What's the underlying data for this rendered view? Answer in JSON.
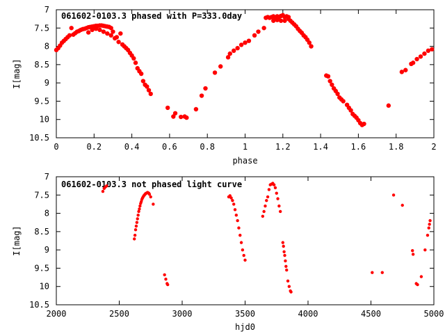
{
  "chart_data": [
    {
      "type": "scatter",
      "title": "061602-0103.3 phased with P=333.0day",
      "xlabel": "phase",
      "ylabel": "I[mag]",
      "xlim": [
        0,
        2
      ],
      "ylim": [
        10.5,
        7
      ],
      "y_inverted": true,
      "xticks": [
        0,
        0.2,
        0.4,
        0.6,
        0.8,
        1,
        1.2,
        1.4,
        1.6,
        1.8,
        2
      ],
      "xtick_labels": [
        "0",
        "0.2",
        "0.4",
        "0.6",
        "0.8",
        "1",
        "1.2",
        "1.4",
        "1.6",
        "1.8",
        "2"
      ],
      "yticks": [
        7,
        7.5,
        8,
        8.5,
        9,
        9.5,
        10,
        10.5
      ],
      "ytick_labels": [
        "7",
        "7.5",
        "8",
        "8.5",
        "9",
        "9.5",
        "10",
        "10.5"
      ],
      "grid": false,
      "marker_color": "#ff0000",
      "series": [
        {
          "values": [
            [
              0.0,
              8.1
            ],
            [
              0.01,
              8.05
            ],
            [
              0.02,
              7.98
            ],
            [
              0.03,
              7.9
            ],
            [
              0.04,
              7.85
            ],
            [
              0.05,
              7.8
            ],
            [
              0.06,
              7.75
            ],
            [
              0.07,
              7.7
            ],
            [
              0.08,
              7.5
            ],
            [
              0.09,
              7.68
            ],
            [
              0.1,
              7.64
            ],
            [
              0.11,
              7.6
            ],
            [
              0.12,
              7.58
            ],
            [
              0.13,
              7.55
            ],
            [
              0.14,
              7.53
            ],
            [
              0.15,
              7.52
            ],
            [
              0.16,
              7.5
            ],
            [
              0.17,
              7.48
            ],
            [
              0.18,
              7.47
            ],
            [
              0.19,
              7.46
            ],
            [
              0.2,
              7.45
            ],
            [
              0.21,
              7.44
            ],
            [
              0.22,
              7.44
            ],
            [
              0.23,
              7.43
            ],
            [
              0.24,
              7.43
            ],
            [
              0.25,
              7.44
            ],
            [
              0.26,
              7.45
            ],
            [
              0.27,
              7.46
            ],
            [
              0.28,
              7.47
            ],
            [
              0.29,
              7.5
            ],
            [
              0.17,
              7.62
            ],
            [
              0.19,
              7.55
            ],
            [
              0.21,
              7.52
            ],
            [
              0.23,
              7.55
            ],
            [
              0.25,
              7.6
            ],
            [
              0.27,
              7.65
            ],
            [
              0.29,
              7.7
            ],
            [
              0.31,
              7.78
            ],
            [
              0.33,
              7.88
            ],
            [
              0.35,
              7.95
            ],
            [
              0.36,
              8.0
            ],
            [
              0.37,
              8.05
            ],
            [
              0.38,
              8.1
            ],
            [
              0.39,
              8.18
            ],
            [
              0.4,
              8.25
            ],
            [
              0.41,
              8.33
            ],
            [
              0.42,
              8.45
            ],
            [
              0.43,
              8.6
            ],
            [
              0.44,
              8.68
            ],
            [
              0.45,
              8.75
            ],
            [
              0.46,
              8.95
            ],
            [
              0.47,
              9.05
            ],
            [
              0.48,
              9.1
            ],
            [
              0.49,
              9.2
            ],
            [
              0.5,
              9.3
            ],
            [
              0.34,
              7.65
            ],
            [
              0.3,
              7.6
            ],
            [
              0.32,
              7.75
            ],
            [
              0.59,
              9.68
            ],
            [
              0.62,
              9.92
            ],
            [
              0.63,
              9.83
            ],
            [
              0.66,
              9.93
            ],
            [
              0.68,
              9.92
            ],
            [
              0.69,
              9.95
            ],
            [
              0.74,
              9.72
            ],
            [
              0.77,
              9.35
            ],
            [
              0.79,
              9.15
            ],
            [
              0.84,
              8.72
            ],
            [
              0.87,
              8.55
            ],
            [
              0.91,
              8.3
            ],
            [
              0.92,
              8.2
            ],
            [
              0.94,
              8.12
            ],
            [
              0.96,
              8.05
            ],
            [
              0.98,
              7.96
            ],
            [
              1.0,
              7.9
            ],
            [
              1.02,
              7.85
            ],
            [
              1.05,
              7.7
            ],
            [
              1.07,
              7.6
            ],
            [
              1.1,
              7.5
            ],
            [
              1.11,
              7.22
            ],
            [
              1.12,
              7.2
            ],
            [
              1.13,
              7.22
            ],
            [
              1.14,
              7.2
            ],
            [
              1.15,
              7.18
            ],
            [
              1.16,
              7.22
            ],
            [
              1.17,
              7.18
            ],
            [
              1.18,
              7.2
            ],
            [
              1.19,
              7.17
            ],
            [
              1.2,
              7.15
            ],
            [
              1.21,
              7.2
            ],
            [
              1.22,
              7.18
            ],
            [
              1.23,
              7.2
            ],
            [
              1.15,
              7.3
            ],
            [
              1.17,
              7.28
            ],
            [
              1.19,
              7.3
            ],
            [
              1.21,
              7.3
            ],
            [
              1.23,
              7.25
            ],
            [
              1.24,
              7.3
            ],
            [
              1.25,
              7.35
            ],
            [
              1.26,
              7.4
            ],
            [
              1.27,
              7.45
            ],
            [
              1.28,
              7.52
            ],
            [
              1.29,
              7.58
            ],
            [
              1.3,
              7.63
            ],
            [
              1.31,
              7.7
            ],
            [
              1.32,
              7.75
            ],
            [
              1.33,
              7.82
            ],
            [
              1.34,
              7.9
            ],
            [
              1.35,
              8.0
            ],
            [
              1.43,
              8.8
            ],
            [
              1.44,
              8.82
            ],
            [
              1.45,
              8.95
            ],
            [
              1.46,
              9.05
            ],
            [
              1.47,
              9.15
            ],
            [
              1.48,
              9.22
            ],
            [
              1.49,
              9.3
            ],
            [
              1.5,
              9.4
            ],
            [
              1.51,
              9.45
            ],
            [
              1.52,
              9.5
            ],
            [
              1.54,
              9.6
            ],
            [
              1.55,
              9.68
            ],
            [
              1.56,
              9.75
            ],
            [
              1.57,
              9.85
            ],
            [
              1.58,
              9.9
            ],
            [
              1.59,
              9.95
            ],
            [
              1.6,
              10.02
            ],
            [
              1.61,
              10.1
            ],
            [
              1.62,
              10.15
            ],
            [
              1.63,
              10.12
            ],
            [
              1.76,
              9.62
            ],
            [
              1.83,
              8.7
            ],
            [
              1.85,
              8.65
            ],
            [
              1.88,
              8.48
            ],
            [
              1.89,
              8.45
            ],
            [
              1.91,
              8.35
            ],
            [
              1.93,
              8.28
            ],
            [
              1.95,
              8.2
            ],
            [
              1.97,
              8.12
            ],
            [
              1.99,
              8.08
            ]
          ]
        }
      ]
    },
    {
      "type": "scatter",
      "title": "061602-0103.3 not phased light curve",
      "xlabel": "hjd0",
      "ylabel": "I[mag]",
      "xlim": [
        2000,
        5000
      ],
      "ylim": [
        10.5,
        7
      ],
      "y_inverted": true,
      "xticks": [
        2000,
        2500,
        3000,
        3500,
        4000,
        4500,
        5000
      ],
      "xtick_labels": [
        "2000",
        "2500",
        "3000",
        "3500",
        "4000",
        "4500",
        "5000"
      ],
      "yticks": [
        7,
        7.5,
        8,
        8.5,
        9,
        9.5,
        10,
        10.5
      ],
      "ytick_labels": [
        "7",
        "7.5",
        "8",
        "8.5",
        "9",
        "9.5",
        "10",
        "10.5"
      ],
      "grid": false,
      "marker_color": "#ff0000",
      "series": [
        {
          "values": [
            [
              2370,
              7.4
            ],
            [
              2380,
              7.32
            ],
            [
              2390,
              7.28
            ],
            [
              2400,
              7.25
            ],
            [
              2620,
              8.7
            ],
            [
              2625,
              8.6
            ],
            [
              2630,
              8.45
            ],
            [
              2635,
              8.35
            ],
            [
              2640,
              8.25
            ],
            [
              2645,
              8.15
            ],
            [
              2650,
              8.05
            ],
            [
              2655,
              7.95
            ],
            [
              2660,
              7.88
            ],
            [
              2665,
              7.8
            ],
            [
              2670,
              7.73
            ],
            [
              2675,
              7.68
            ],
            [
              2680,
              7.62
            ],
            [
              2685,
              7.58
            ],
            [
              2690,
              7.55
            ],
            [
              2695,
              7.52
            ],
            [
              2700,
              7.5
            ],
            [
              2705,
              7.48
            ],
            [
              2710,
              7.46
            ],
            [
              2715,
              7.45
            ],
            [
              2720,
              7.44
            ],
            [
              2725,
              7.43
            ],
            [
              2730,
              7.44
            ],
            [
              2735,
              7.45
            ],
            [
              2740,
              7.48
            ],
            [
              2750,
              7.55
            ],
            [
              2770,
              7.75
            ],
            [
              2860,
              9.68
            ],
            [
              2870,
              9.8
            ],
            [
              2880,
              9.92
            ],
            [
              2885,
              9.95
            ],
            [
              3370,
              7.55
            ],
            [
              3380,
              7.52
            ],
            [
              3390,
              7.58
            ],
            [
              3400,
              7.65
            ],
            [
              3410,
              7.75
            ],
            [
              3420,
              7.9
            ],
            [
              3430,
              8.05
            ],
            [
              3440,
              8.2
            ],
            [
              3450,
              8.4
            ],
            [
              3460,
              8.6
            ],
            [
              3470,
              8.8
            ],
            [
              3480,
              9.0
            ],
            [
              3490,
              9.15
            ],
            [
              3500,
              9.28
            ],
            [
              3640,
              8.08
            ],
            [
              3650,
              7.95
            ],
            [
              3660,
              7.8
            ],
            [
              3670,
              7.65
            ],
            [
              3680,
              7.55
            ],
            [
              3690,
              7.35
            ],
            [
              3700,
              7.22
            ],
            [
              3710,
              7.2
            ],
            [
              3720,
              7.18
            ],
            [
              3730,
              7.22
            ],
            [
              3740,
              7.3
            ],
            [
              3750,
              7.45
            ],
            [
              3760,
              7.6
            ],
            [
              3770,
              7.8
            ],
            [
              3780,
              7.95
            ],
            [
              3800,
              8.8
            ],
            [
              3805,
              8.9
            ],
            [
              3810,
              9.05
            ],
            [
              3815,
              9.15
            ],
            [
              3820,
              9.3
            ],
            [
              3825,
              9.45
            ],
            [
              3830,
              9.55
            ],
            [
              3840,
              9.85
            ],
            [
              3850,
              10.0
            ],
            [
              3860,
              10.12
            ],
            [
              3865,
              10.15
            ],
            [
              4510,
              9.62
            ],
            [
              4590,
              9.62
            ],
            [
              4680,
              7.5
            ],
            [
              4750,
              7.78
            ],
            [
              4830,
              9.02
            ],
            [
              4835,
              9.12
            ],
            [
              4860,
              9.92
            ],
            [
              4870,
              9.95
            ],
            [
              4900,
              9.73
            ],
            [
              4930,
              9.0
            ],
            [
              4950,
              8.6
            ],
            [
              4960,
              8.4
            ],
            [
              4965,
              8.3
            ],
            [
              4970,
              8.2
            ]
          ]
        }
      ]
    }
  ]
}
